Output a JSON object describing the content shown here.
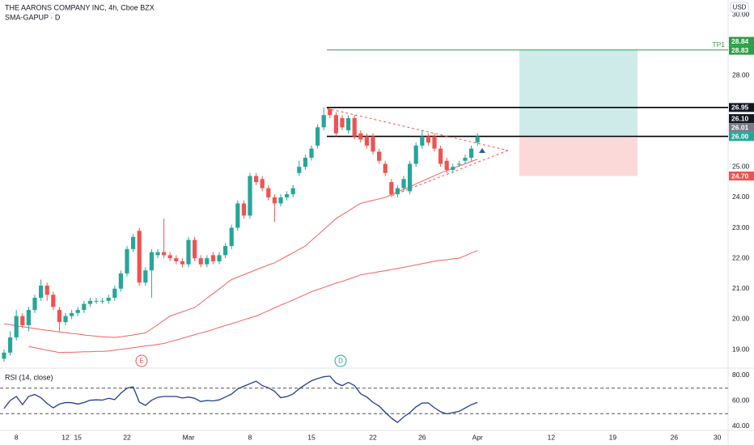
{
  "header": {
    "title": "THE AARONS COMPANY INC, 4h, Cboe BZX",
    "indicator": "SMA-GAPUP · D",
    "currency": "USD"
  },
  "markers": {
    "earnings": "E",
    "dividend": "D"
  },
  "chart_data": {
    "type": "candlestick",
    "categories": [
      null,
      null,
      "8",
      null,
      null,
      null,
      null,
      null,
      null,
      null,
      "12",
      null,
      "15",
      null,
      null,
      null,
      null,
      null,
      null,
      null,
      "22",
      null,
      null,
      null,
      null,
      null,
      null,
      null,
      null,
      null,
      "Mar",
      null,
      null,
      null,
      null,
      null,
      null,
      null,
      null,
      null,
      "8",
      null,
      null,
      null,
      null,
      null,
      null,
      null,
      null,
      null,
      "15",
      null,
      null,
      null,
      null,
      null,
      null,
      null,
      null,
      null,
      "22",
      null,
      null,
      null,
      null,
      null,
      null,
      null,
      "26",
      null,
      null,
      null,
      null,
      null,
      null,
      null,
      null,
      "Apr",
      null,
      null,
      null,
      null,
      null,
      null,
      null,
      null,
      null,
      null,
      null,
      "12",
      null,
      null,
      null,
      null,
      null,
      null,
      null,
      null,
      null,
      "19",
      null,
      null,
      null,
      null,
      null,
      null,
      null,
      null,
      null,
      "26",
      null,
      null,
      null,
      null,
      null,
      null,
      "30",
      null
    ],
    "ohlc": [
      [
        18.7,
        19.0,
        18.6,
        18.9
      ],
      [
        18.9,
        19.6,
        18.8,
        19.4
      ],
      [
        19.4,
        20.3,
        19.3,
        20.1
      ],
      [
        20.1,
        20.2,
        19.7,
        19.8
      ],
      [
        19.8,
        20.4,
        19.6,
        20.3
      ],
      [
        20.3,
        20.8,
        20.2,
        20.7
      ],
      [
        20.7,
        21.3,
        20.6,
        21.1
      ],
      [
        21.1,
        21.2,
        20.6,
        20.8
      ],
      [
        20.8,
        20.9,
        20.3,
        20.4
      ],
      [
        20.3,
        20.4,
        19.6,
        19.9
      ],
      [
        19.9,
        20.2,
        19.8,
        20.1
      ],
      [
        20.1,
        20.3,
        20.0,
        20.2
      ],
      [
        20.2,
        20.4,
        20.1,
        20.3
      ],
      [
        20.3,
        20.6,
        20.2,
        20.5
      ],
      [
        20.5,
        20.7,
        20.4,
        20.6
      ],
      [
        20.6,
        20.7,
        20.5,
        20.6
      ],
      [
        20.6,
        20.7,
        20.5,
        20.6
      ],
      [
        20.6,
        20.8,
        20.5,
        20.7
      ],
      [
        20.7,
        21.1,
        20.6,
        21.0
      ],
      [
        21.0,
        21.6,
        20.9,
        21.5
      ],
      [
        21.5,
        22.4,
        21.4,
        22.3
      ],
      [
        22.3,
        22.8,
        22.2,
        22.7
      ],
      [
        22.9,
        23.0,
        21.1,
        21.2
      ],
      [
        21.2,
        21.7,
        21.1,
        21.6
      ],
      [
        21.6,
        22.3,
        20.7,
        22.2
      ],
      [
        22.1,
        22.3,
        22.0,
        22.2
      ],
      [
        22.2,
        23.3,
        22.0,
        22.1
      ],
      [
        22.1,
        22.2,
        21.9,
        22.0
      ],
      [
        22.0,
        22.1,
        21.8,
        21.9
      ],
      [
        21.9,
        22.0,
        21.7,
        21.8
      ],
      [
        21.8,
        22.7,
        21.7,
        22.6
      ],
      [
        22.6,
        22.7,
        21.9,
        22.0
      ],
      [
        22.0,
        22.1,
        21.7,
        21.8
      ],
      [
        21.8,
        22.1,
        21.7,
        22.0
      ],
      [
        22.1,
        22.2,
        21.8,
        21.9
      ],
      [
        21.9,
        22.2,
        21.8,
        22.1
      ],
      [
        22.1,
        22.5,
        22.0,
        22.4
      ],
      [
        22.4,
        23.1,
        22.3,
        23.0
      ],
      [
        23.0,
        23.9,
        22.9,
        23.8
      ],
      [
        23.8,
        23.9,
        23.3,
        23.4
      ],
      [
        23.4,
        24.8,
        23.3,
        24.7
      ],
      [
        24.7,
        24.8,
        24.4,
        24.5
      ],
      [
        24.6,
        24.7,
        24.2,
        24.3
      ],
      [
        24.3,
        24.4,
        23.9,
        24.0
      ],
      [
        24.0,
        24.1,
        23.2,
        23.8
      ],
      [
        23.8,
        24.1,
        23.7,
        24.0
      ],
      [
        24.0,
        24.2,
        23.9,
        24.1
      ],
      [
        24.1,
        24.4,
        24.0,
        24.3
      ],
      [
        24.8,
        25.2,
        24.7,
        25.0
      ],
      [
        25.0,
        25.4,
        24.9,
        25.3
      ],
      [
        25.3,
        25.7,
        25.2,
        25.6
      ],
      [
        25.7,
        26.4,
        25.6,
        26.3
      ],
      [
        26.3,
        26.95,
        26.2,
        26.7
      ],
      [
        26.9,
        26.95,
        26.6,
        26.7
      ],
      [
        26.7,
        26.8,
        26.0,
        26.1
      ],
      [
        26.6,
        26.7,
        26.2,
        26.3
      ],
      [
        26.2,
        26.7,
        26.1,
        26.6
      ],
      [
        26.6,
        26.7,
        25.9,
        26.0
      ],
      [
        26.1,
        26.2,
        25.8,
        25.9
      ],
      [
        26.0,
        26.1,
        25.6,
        25.7
      ],
      [
        26.0,
        26.1,
        25.4,
        25.5
      ],
      [
        25.5,
        25.6,
        25.1,
        25.2
      ],
      [
        25.1,
        25.2,
        24.7,
        24.8
      ],
      [
        24.5,
        24.6,
        24.0,
        24.1
      ],
      [
        24.1,
        24.4,
        24.0,
        24.3
      ],
      [
        24.3,
        24.7,
        24.2,
        24.6
      ],
      [
        24.2,
        25.2,
        24.1,
        25.1
      ],
      [
        25.1,
        25.8,
        25.0,
        25.7
      ],
      [
        25.7,
        26.2,
        25.6,
        26.0
      ],
      [
        26.0,
        26.1,
        25.7,
        25.8
      ],
      [
        26.0,
        26.1,
        25.5,
        25.6
      ],
      [
        25.6,
        25.7,
        25.0,
        25.1
      ],
      [
        25.2,
        25.3,
        24.8,
        24.9
      ],
      [
        24.9,
        25.1,
        24.8,
        25.0
      ],
      [
        25.1,
        25.2,
        25.0,
        25.1
      ],
      [
        25.2,
        25.4,
        25.1,
        25.3
      ],
      [
        25.3,
        25.7,
        25.2,
        25.6
      ],
      [
        25.8,
        26.1,
        25.7,
        26.0
      ],
      null,
      null,
      null,
      null,
      null,
      null,
      null,
      null,
      null,
      null,
      null,
      null,
      null,
      null,
      null,
      null,
      null,
      null,
      null,
      null,
      null,
      null,
      null,
      null,
      null,
      null,
      null,
      null,
      null,
      null,
      null,
      null,
      null,
      null,
      null,
      null,
      null,
      null,
      null,
      null
    ],
    "up_color": "#26a69a",
    "down_color": "#ef5350",
    "ylim": [
      18.39,
      30.48
    ],
    "yticks": [
      {
        "value": 19,
        "label": "19.00"
      },
      {
        "value": 20,
        "label": "20.00"
      },
      {
        "value": 21,
        "label": "21.00"
      },
      {
        "value": 22,
        "label": "22.00"
      },
      {
        "value": 23,
        "label": "23.00"
      },
      {
        "value": 24,
        "label": "24.00"
      },
      {
        "value": 25,
        "label": "25.00"
      },
      {
        "value": 28,
        "label": "28.00"
      },
      {
        "value": 30,
        "label": "30.00"
      }
    ],
    "lines": [
      {
        "color": "#f0625e",
        "values": [
          19.85,
          19.82,
          19.78,
          19.75,
          19.72,
          19.69,
          19.66,
          19.63,
          19.61,
          19.58,
          19.56,
          19.53,
          19.51,
          19.48,
          19.46,
          19.44,
          19.42,
          19.41,
          19.4,
          19.42,
          19.45,
          19.48,
          19.51,
          19.55,
          19.68,
          19.82,
          19.96,
          20.1,
          20.17,
          20.24,
          20.31,
          20.38,
          20.53,
          20.69,
          20.84,
          20.99,
          21.15,
          21.3,
          21.38,
          21.46,
          21.54,
          21.62,
          21.7,
          21.78,
          21.85,
          21.96,
          22.07,
          22.18,
          22.29,
          22.4,
          22.58,
          22.76,
          22.94,
          23.12,
          23.3,
          23.43,
          23.55,
          23.68,
          23.8,
          23.85,
          23.9,
          23.95,
          24.0,
          24.09,
          24.18,
          24.26,
          24.35,
          24.44,
          24.53,
          24.62,
          24.71,
          24.8,
          24.88,
          24.95,
          25.03,
          25.1,
          25.18,
          25.25,
          null,
          null,
          null,
          null,
          null,
          null,
          null,
          null,
          null,
          null,
          null,
          null,
          null,
          null,
          null,
          null,
          null,
          null,
          null,
          null,
          null,
          null,
          null,
          null,
          null,
          null,
          null,
          null,
          null,
          null,
          null,
          null,
          null,
          null,
          null,
          null,
          null,
          null,
          null,
          null
        ]
      },
      {
        "color": "#f0625e",
        "values": [
          null,
          null,
          null,
          null,
          19.1,
          19.06,
          19.02,
          18.98,
          18.94,
          18.9,
          18.91,
          18.91,
          18.92,
          18.93,
          18.93,
          18.94,
          18.94,
          18.95,
          18.98,
          19.01,
          19.03,
          19.06,
          19.09,
          19.12,
          19.14,
          19.17,
          19.2,
          19.26,
          19.31,
          19.37,
          19.43,
          19.49,
          19.54,
          19.6,
          19.66,
          19.73,
          19.79,
          19.85,
          19.91,
          19.98,
          20.04,
          20.1,
          20.19,
          20.28,
          20.37,
          20.46,
          20.54,
          20.63,
          20.72,
          20.81,
          20.9,
          20.97,
          21.04,
          21.11,
          21.18,
          21.24,
          21.31,
          21.38,
          21.45,
          21.49,
          21.52,
          21.56,
          21.59,
          21.63,
          21.66,
          21.7,
          21.74,
          21.78,
          21.82,
          21.86,
          21.9,
          21.93,
          21.95,
          21.98,
          22.0,
          22.08,
          22.17,
          22.25,
          null,
          null,
          null,
          null,
          null,
          null,
          null,
          null,
          null,
          null,
          null,
          null,
          null,
          null,
          null,
          null,
          null,
          null,
          null,
          null,
          null,
          null,
          null,
          null,
          null,
          null,
          null,
          null,
          null,
          null,
          null,
          null,
          null,
          null,
          null,
          null,
          null,
          null,
          null,
          null
        ]
      }
    ],
    "levels": [
      {
        "value": 28.84,
        "color": "#2e9e48",
        "label": "TP1"
      },
      {
        "value": 26.95,
        "color": "#000000"
      },
      {
        "value": 26.0,
        "color": "#000000"
      }
    ],
    "price_labels": [
      {
        "value": 28.84,
        "label": "28.84",
        "color": "#2e9e48"
      },
      {
        "value": 28.83,
        "label": "28.83",
        "color": "#2e9e48"
      },
      {
        "value": 26.95,
        "label": "26.95",
        "color": "#131722"
      },
      {
        "value": 26.1,
        "label": "26.10",
        "color": "#131722"
      },
      {
        "value": 26.01,
        "label": "26.01",
        "color": "#787b86"
      },
      {
        "value": 26.0,
        "label": "26.00",
        "color": "#26a69a"
      },
      {
        "value": 24.7,
        "label": "24.70",
        "color": "#ef5350"
      }
    ],
    "position": {
      "target": 28.84,
      "entry": 26.0,
      "stop": 24.7
    },
    "pattern": {
      "upper": [
        26.92,
        25.54
      ],
      "lower": [
        24.06,
        25.54
      ],
      "color": "#ef5350"
    },
    "rsi": {
      "label": "RSI (14, close)",
      "color": "#1f3f8f",
      "ylim": [
        34.9,
        85.7
      ],
      "bands": [
        50,
        70
      ],
      "yticks": [
        {
          "value": 80,
          "label": "80.00"
        },
        {
          "value": 60,
          "label": "60.00"
        },
        {
          "value": 40,
          "label": "40.00"
        }
      ],
      "values": [
        54,
        60.3,
        63.5,
        57.1,
        63.5,
        65,
        62.5,
        58,
        54.5,
        57.5,
        58.7,
        58.6,
        57.5,
        58.7,
        60.5,
        60.8,
        60.6,
        62,
        61,
        66,
        70,
        71,
        59,
        56.5,
        60.5,
        62.8,
        63.5,
        63.5,
        63.5,
        62.2,
        63,
        62,
        59.5,
        60.3,
        60,
        60.8,
        63,
        65.3,
        69.4,
        71.5,
        73.5,
        75.5,
        72,
        70.3,
        67.5,
        62.5,
        63.4,
        65.4,
        69.6,
        72.8,
        75.8,
        77.5,
        79,
        79.4,
        74,
        72,
        74.5,
        72,
        65.5,
        63,
        58.8,
        56,
        51,
        46.5,
        43,
        47.5,
        50.8,
        55.3,
        58.3,
        58.4,
        54.6,
        51.5,
        49.8,
        50.8,
        51.8,
        54.4,
        57,
        58.8,
        null,
        null,
        null,
        null,
        null,
        null,
        null,
        null,
        null,
        null,
        null,
        null,
        null,
        null,
        null,
        null,
        null,
        null,
        null,
        null,
        null,
        null,
        null,
        null,
        null,
        null,
        null,
        null,
        null,
        null,
        null,
        null,
        null,
        null,
        null,
        null,
        null,
        null,
        null,
        null
      ]
    }
  }
}
